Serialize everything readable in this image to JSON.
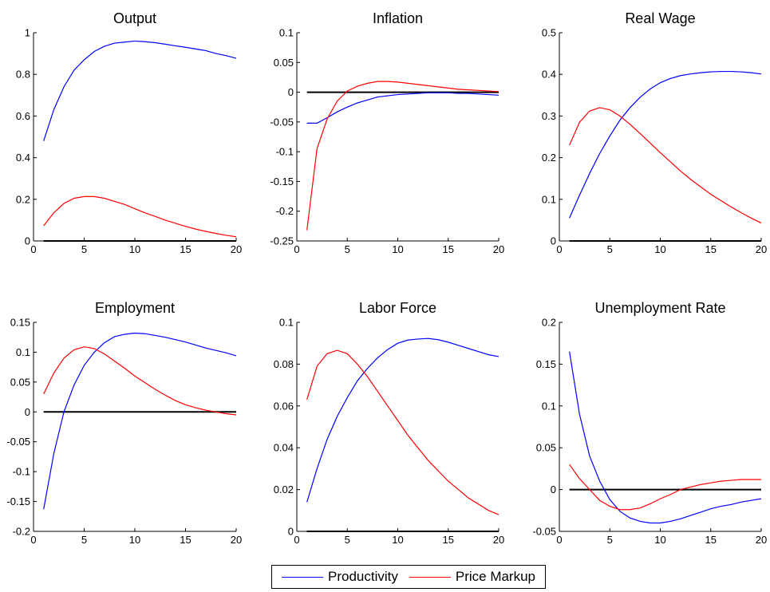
{
  "colors": {
    "productivity": "#0000ff",
    "price_markup": "#ff0000",
    "zero_line": "#000000"
  },
  "legend": {
    "placement": "bottom-center",
    "items": [
      {
        "label": "Productivity",
        "color": "#0000ff"
      },
      {
        "label": "Price Markup",
        "color": "#ff0000"
      }
    ]
  },
  "chart_data": [
    {
      "type": "line",
      "title": "Output",
      "x": [
        1,
        2,
        3,
        4,
        5,
        6,
        7,
        8,
        9,
        10,
        11,
        12,
        13,
        14,
        15,
        16,
        17,
        18,
        19,
        20
      ],
      "xlim": [
        0,
        20
      ],
      "xticks": [
        0,
        5,
        10,
        15,
        20
      ],
      "ylim": [
        0,
        1
      ],
      "yticks": [
        0,
        0.2,
        0.4,
        0.6,
        0.8,
        1
      ],
      "ytick_labels": [
        "0",
        "0.2",
        "0.4",
        "0.6",
        "0.8",
        "1"
      ],
      "zero_line": true,
      "series": [
        {
          "name": "Productivity",
          "values": [
            0.48,
            0.63,
            0.74,
            0.82,
            0.87,
            0.91,
            0.935,
            0.95,
            0.955,
            0.96,
            0.957,
            0.952,
            0.945,
            0.937,
            0.93,
            0.922,
            0.914,
            0.9,
            0.89,
            0.877
          ]
        },
        {
          "name": "Price Markup",
          "values": [
            0.073,
            0.135,
            0.18,
            0.205,
            0.213,
            0.213,
            0.205,
            0.19,
            0.175,
            0.155,
            0.135,
            0.118,
            0.1,
            0.085,
            0.07,
            0.057,
            0.046,
            0.036,
            0.027,
            0.02
          ]
        }
      ]
    },
    {
      "type": "line",
      "title": "Inflation",
      "x": [
        1,
        2,
        3,
        4,
        5,
        6,
        7,
        8,
        9,
        10,
        11,
        12,
        13,
        14,
        15,
        16,
        17,
        18,
        19,
        20
      ],
      "xlim": [
        0,
        20
      ],
      "xticks": [
        0,
        5,
        10,
        15,
        20
      ],
      "ylim": [
        -0.25,
        0.1
      ],
      "yticks": [
        -0.25,
        -0.2,
        -0.15,
        -0.1,
        -0.05,
        0,
        0.05,
        0.1
      ],
      "ytick_labels": [
        "-0.25",
        "-0.2",
        "-0.15",
        "-0.1",
        "-0.05",
        "0",
        "0.05",
        "0.1"
      ],
      "zero_line": true,
      "series": [
        {
          "name": "Productivity",
          "values": [
            -0.052,
            -0.052,
            -0.043,
            -0.033,
            -0.025,
            -0.018,
            -0.013,
            -0.008,
            -0.006,
            -0.004,
            -0.003,
            -0.002,
            -0.001,
            -0.001,
            -0.001,
            -0.002,
            -0.002,
            -0.003,
            -0.004,
            -0.005
          ]
        },
        {
          "name": "Price Markup",
          "values": [
            -0.232,
            -0.095,
            -0.045,
            -0.015,
            0.002,
            0.01,
            0.015,
            0.018,
            0.018,
            0.017,
            0.015,
            0.013,
            0.011,
            0.009,
            0.007,
            0.005,
            0.004,
            0.003,
            0.002,
            0.001
          ]
        }
      ]
    },
    {
      "type": "line",
      "title": "Real Wage",
      "x": [
        1,
        2,
        3,
        4,
        5,
        6,
        7,
        8,
        9,
        10,
        11,
        12,
        13,
        14,
        15,
        16,
        17,
        18,
        19,
        20
      ],
      "xlim": [
        0,
        20
      ],
      "xticks": [
        0,
        5,
        10,
        15,
        20
      ],
      "ylim": [
        0,
        0.5
      ],
      "yticks": [
        0,
        0.1,
        0.2,
        0.3,
        0.4,
        0.5
      ],
      "ytick_labels": [
        "0",
        "0.1",
        "0.2",
        "0.3",
        "0.4",
        "0.5"
      ],
      "zero_line": true,
      "series": [
        {
          "name": "Productivity",
          "values": [
            0.055,
            0.11,
            0.162,
            0.21,
            0.252,
            0.29,
            0.32,
            0.345,
            0.365,
            0.38,
            0.39,
            0.397,
            0.401,
            0.404,
            0.406,
            0.407,
            0.407,
            0.406,
            0.404,
            0.401
          ]
        },
        {
          "name": "Price Markup",
          "values": [
            0.23,
            0.285,
            0.312,
            0.32,
            0.315,
            0.3,
            0.28,
            0.258,
            0.235,
            0.212,
            0.19,
            0.168,
            0.148,
            0.13,
            0.112,
            0.097,
            0.082,
            0.068,
            0.055,
            0.043
          ]
        }
      ]
    },
    {
      "type": "line",
      "title": "Employment",
      "x": [
        1,
        2,
        3,
        4,
        5,
        6,
        7,
        8,
        9,
        10,
        11,
        12,
        13,
        14,
        15,
        16,
        17,
        18,
        19,
        20
      ],
      "xlim": [
        0,
        20
      ],
      "xticks": [
        0,
        5,
        10,
        15,
        20
      ],
      "ylim": [
        -0.2,
        0.15
      ],
      "yticks": [
        -0.2,
        -0.15,
        -0.1,
        -0.05,
        0,
        0.05,
        0.1,
        0.15
      ],
      "ytick_labels": [
        "-0.2",
        "-0.15",
        "-0.1",
        "-0.05",
        "0",
        "0.05",
        "0.1",
        "0.15"
      ],
      "zero_line": true,
      "series": [
        {
          "name": "Productivity",
          "values": [
            -0.163,
            -0.07,
            0.0,
            0.045,
            0.078,
            0.1,
            0.116,
            0.126,
            0.13,
            0.132,
            0.131,
            0.128,
            0.125,
            0.121,
            0.117,
            0.112,
            0.107,
            0.103,
            0.099,
            0.094
          ]
        },
        {
          "name": "Price Markup",
          "values": [
            0.03,
            0.065,
            0.09,
            0.104,
            0.109,
            0.106,
            0.097,
            0.085,
            0.073,
            0.06,
            0.049,
            0.038,
            0.028,
            0.019,
            0.012,
            0.007,
            0.003,
            0.0,
            -0.003,
            -0.005
          ]
        }
      ]
    },
    {
      "type": "line",
      "title": "Labor Force",
      "x": [
        1,
        2,
        3,
        4,
        5,
        6,
        7,
        8,
        9,
        10,
        11,
        12,
        13,
        14,
        15,
        16,
        17,
        18,
        19,
        20
      ],
      "xlim": [
        0,
        20
      ],
      "xticks": [
        0,
        5,
        10,
        15,
        20
      ],
      "ylim": [
        0,
        0.1
      ],
      "yticks": [
        0,
        0.02,
        0.04,
        0.06,
        0.08,
        0.1
      ],
      "ytick_labels": [
        "0",
        "0.02",
        "0.04",
        "0.06",
        "0.08",
        "0.1"
      ],
      "zero_line": true,
      "series": [
        {
          "name": "Productivity",
          "values": [
            0.014,
            0.03,
            0.044,
            0.055,
            0.064,
            0.072,
            0.078,
            0.083,
            0.087,
            0.09,
            0.0915,
            0.092,
            0.0923,
            0.0917,
            0.0905,
            0.089,
            0.0875,
            0.086,
            0.0845,
            0.0836
          ]
        },
        {
          "name": "Price Markup",
          "values": [
            0.063,
            0.079,
            0.085,
            0.0866,
            0.085,
            0.08,
            0.074,
            0.067,
            0.06,
            0.053,
            0.046,
            0.04,
            0.034,
            0.029,
            0.024,
            0.02,
            0.016,
            0.013,
            0.01,
            0.008
          ]
        }
      ]
    },
    {
      "type": "line",
      "title": "Unemployment Rate",
      "x": [
        1,
        2,
        3,
        4,
        5,
        6,
        7,
        8,
        9,
        10,
        11,
        12,
        13,
        14,
        15,
        16,
        17,
        18,
        19,
        20
      ],
      "xlim": [
        0,
        20
      ],
      "xticks": [
        0,
        5,
        10,
        15,
        20
      ],
      "ylim": [
        -0.05,
        0.2
      ],
      "yticks": [
        -0.05,
        0,
        0.05,
        0.1,
        0.15,
        0.2
      ],
      "ytick_labels": [
        "-0.05",
        "0",
        "0.05",
        "0.1",
        "0.15",
        "0.2"
      ],
      "zero_line": true,
      "series": [
        {
          "name": "Productivity",
          "values": [
            0.165,
            0.09,
            0.04,
            0.01,
            -0.012,
            -0.026,
            -0.034,
            -0.038,
            -0.04,
            -0.04,
            -0.038,
            -0.035,
            -0.031,
            -0.027,
            -0.023,
            -0.02,
            -0.018,
            -0.015,
            -0.013,
            -0.011
          ]
        },
        {
          "name": "Price Markup",
          "values": [
            0.03,
            0.013,
            0.0,
            -0.013,
            -0.02,
            -0.024,
            -0.024,
            -0.022,
            -0.017,
            -0.011,
            -0.006,
            0.0,
            0.003,
            0.006,
            0.008,
            0.01,
            0.011,
            0.012,
            0.012,
            0.012
          ]
        }
      ]
    }
  ]
}
